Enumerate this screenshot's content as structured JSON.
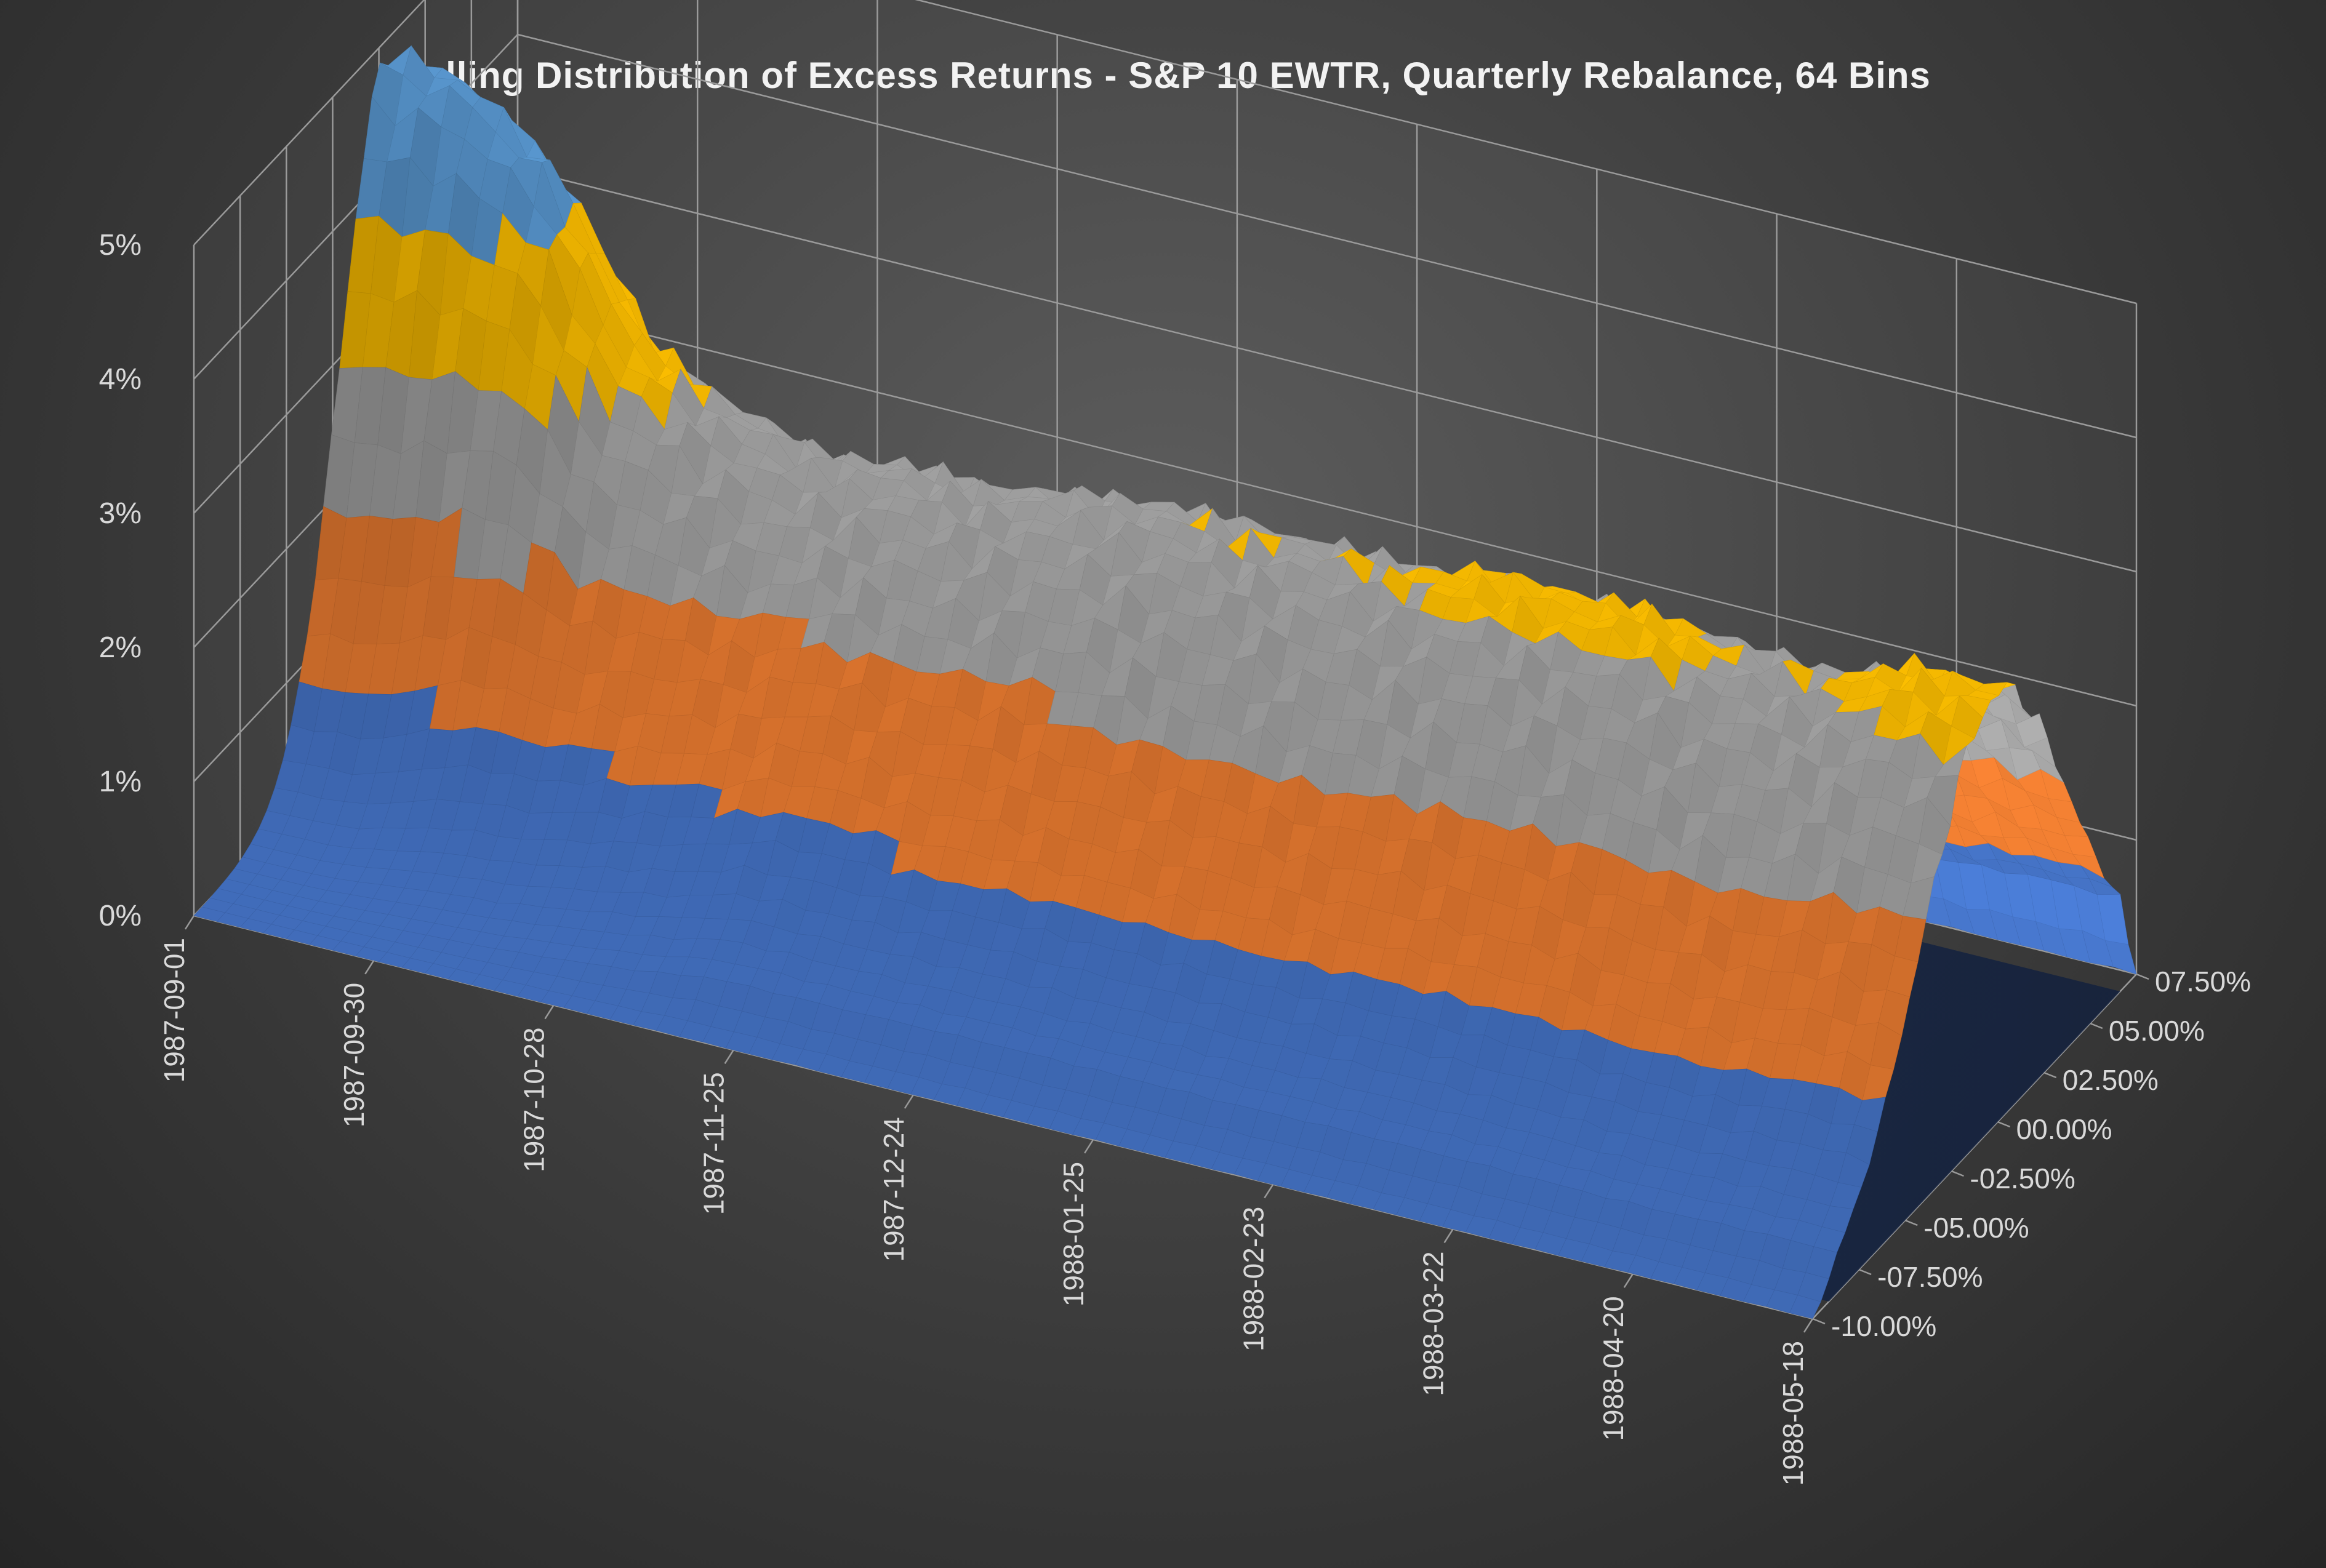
{
  "title": "Rolling Distribution of Excess Returns - S&P 10 EWTR, Quarterly Rebalance, 64 Bins",
  "chart_data": {
    "type": "surface",
    "title": "Rolling Distribution of Excess Returns - S&P 10 EWTR, Quarterly Rebalance, 64 Bins",
    "z_ticks": [
      "0%",
      "1%",
      "2%",
      "3%",
      "4%",
      "5%"
    ],
    "z_range": [
      0,
      5
    ],
    "date_ticks": [
      "1987-09-01",
      "1987-09-30",
      "1987-10-28",
      "1987-11-25",
      "1987-12-24",
      "1988-01-25",
      "1988-02-23",
      "1988-03-22",
      "1988-04-20",
      "1988-05-18"
    ],
    "return_ticks": [
      "-10.00%",
      "-07.50%",
      "-05.00%",
      "-02.50%",
      "00.00%",
      "02.50%",
      "05.00%",
      "07.50%"
    ],
    "return_range": [
      -10,
      7.5
    ],
    "color_bands": [
      {
        "range": "0%-1%",
        "color": "#4472c4"
      },
      {
        "range": "1%-2%",
        "color": "#ed7d31"
      },
      {
        "range": "2%-3%",
        "color": "#a5a5a5"
      },
      {
        "range": "3%-4%",
        "color": "#ffc000"
      },
      {
        "range": "4%-5%",
        "color": "#5b9bd5"
      }
    ],
    "surface_peak_profile": {
      "dates": [
        "1987-09-01",
        "1987-09-15",
        "1987-09-30",
        "1987-10-14",
        "1987-10-28",
        "1987-11-11",
        "1987-11-25",
        "1987-12-09",
        "1987-12-24",
        "1988-01-08",
        "1988-01-25",
        "1988-02-08",
        "1988-02-23",
        "1988-03-08",
        "1988-03-22",
        "1988-04-06",
        "1988-04-20",
        "1988-05-04",
        "1988-05-18",
        "1988-05-31"
      ],
      "max_pct": [
        4.9,
        4.8,
        4.3,
        3.2,
        2.9,
        2.7,
        2.8,
        2.8,
        2.9,
        3.0,
        3.0,
        3.0,
        3.0,
        3.1,
        3.1,
        3.1,
        3.0,
        3.0,
        3.2,
        3.2
      ]
    }
  }
}
